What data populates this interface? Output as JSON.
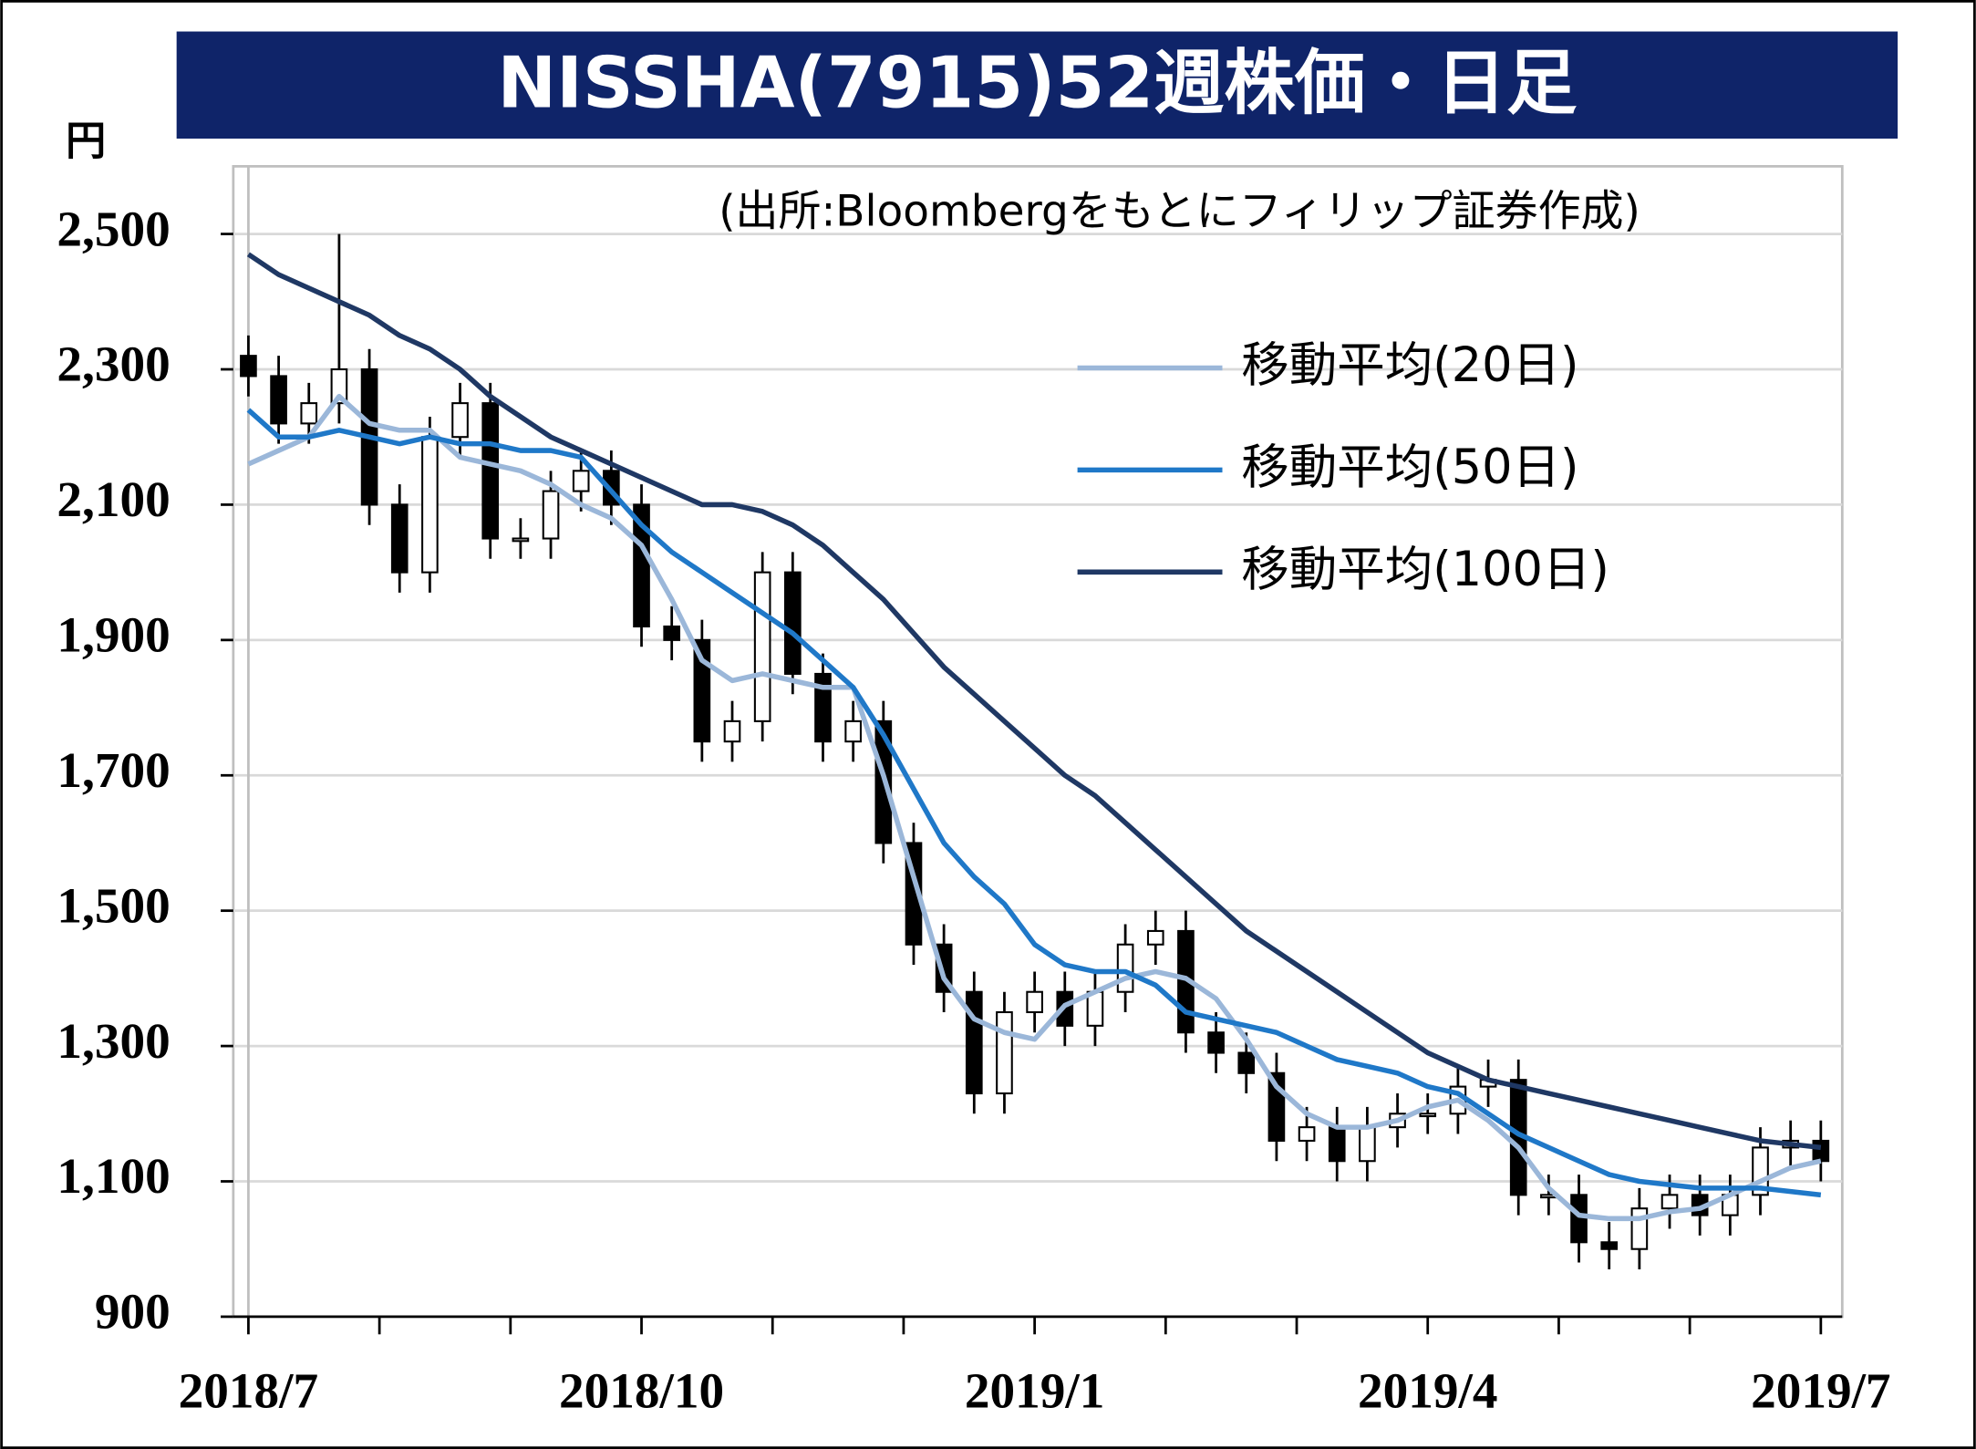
{
  "chart_data": {
    "type": "candlestick",
    "title": "NISSHA(7915)52週株価・日足",
    "subtitle": "(出所:Bloombergをもとにフィリップ証券作成)",
    "y_unit": "円",
    "categories": [
      "2018/7",
      null,
      null,
      null,
      null,
      null,
      null,
      null,
      null,
      null,
      null,
      null,
      null,
      "2018/10",
      null,
      null,
      null,
      null,
      null,
      null,
      null,
      null,
      null,
      null,
      null,
      null,
      "2019/1",
      null,
      null,
      null,
      null,
      null,
      null,
      null,
      null,
      null,
      null,
      null,
      null,
      "2019/4",
      null,
      null,
      null,
      null,
      null,
      null,
      null,
      null,
      null,
      null,
      null,
      null,
      "2019/7"
    ],
    "candles": {
      "open": [
        2320,
        2290,
        2220,
        2250,
        2300,
        2100,
        2000,
        2200,
        2250,
        2050,
        2050,
        2120,
        2150,
        2100,
        1920,
        1900,
        1750,
        1780,
        2000,
        1850,
        1750,
        1780,
        1600,
        1450,
        1380,
        1230,
        1350,
        1380,
        1330,
        1380,
        1450,
        1470,
        1320,
        1290,
        1260,
        1160,
        1180,
        1130,
        1180,
        1200,
        1200,
        1240,
        1250,
        1080,
        1080,
        1010,
        1000,
        1060,
        1080,
        1050,
        1080,
        1150,
        1160
      ],
      "high": [
        2350,
        2320,
        2280,
        2500,
        2330,
        2130,
        2230,
        2280,
        2280,
        2080,
        2150,
        2180,
        2180,
        2130,
        1950,
        1930,
        1810,
        2030,
        2030,
        1880,
        1810,
        1810,
        1630,
        1480,
        1410,
        1380,
        1410,
        1410,
        1410,
        1480,
        1500,
        1500,
        1350,
        1320,
        1290,
        1210,
        1210,
        1210,
        1230,
        1230,
        1270,
        1280,
        1280,
        1110,
        1110,
        1040,
        1090,
        1110,
        1110,
        1110,
        1180,
        1190,
        1190
      ],
      "low": [
        2260,
        2190,
        2190,
        2220,
        2070,
        1970,
        1970,
        2170,
        2020,
        2020,
        2020,
        2090,
        2070,
        1890,
        1870,
        1720,
        1720,
        1750,
        1820,
        1720,
        1720,
        1570,
        1420,
        1350,
        1200,
        1200,
        1320,
        1300,
        1300,
        1350,
        1420,
        1290,
        1260,
        1230,
        1130,
        1130,
        1100,
        1100,
        1150,
        1170,
        1170,
        1210,
        1050,
        1050,
        980,
        970,
        970,
        1030,
        1020,
        1020,
        1050,
        1120,
        1100
      ],
      "close": [
        2290,
        2220,
        2250,
        2300,
        2100,
        2000,
        2200,
        2250,
        2050,
        2050,
        2120,
        2150,
        2100,
        1920,
        1900,
        1750,
        1780,
        2000,
        1850,
        1750,
        1780,
        1600,
        1450,
        1380,
        1230,
        1350,
        1380,
        1330,
        1380,
        1450,
        1470,
        1320,
        1290,
        1260,
        1160,
        1180,
        1130,
        1180,
        1200,
        1200,
        1240,
        1250,
        1080,
        1080,
        1010,
        1000,
        1060,
        1080,
        1050,
        1080,
        1150,
        1160,
        1130
      ],
      "up_color": "#ffffff",
      "down_color": "#000000"
    },
    "series": [
      {
        "name": "移動平均(20日)",
        "color": "#9bb7d9",
        "values": [
          2160,
          2180,
          2200,
          2260,
          2220,
          2210,
          2210,
          2170,
          2160,
          2150,
          2130,
          2100,
          2080,
          2040,
          1960,
          1870,
          1840,
          1850,
          1840,
          1830,
          1830,
          1700,
          1550,
          1400,
          1340,
          1320,
          1310,
          1360,
          1380,
          1400,
          1410,
          1400,
          1370,
          1310,
          1240,
          1200,
          1180,
          1180,
          1190,
          1210,
          1220,
          1190,
          1150,
          1090,
          1050,
          1045,
          1045,
          1055,
          1060,
          1080,
          1100,
          1120,
          1130
        ]
      },
      {
        "name": "移動平均(50日)",
        "color": "#1f78c8",
        "values": [
          2240,
          2200,
          2200,
          2210,
          2200,
          2190,
          2200,
          2190,
          2190,
          2180,
          2180,
          2170,
          2120,
          2070,
          2030,
          2000,
          1970,
          1940,
          1910,
          1870,
          1830,
          1760,
          1680,
          1600,
          1550,
          1510,
          1450,
          1420,
          1410,
          1410,
          1390,
          1350,
          1340,
          1330,
          1320,
          1300,
          1280,
          1270,
          1260,
          1240,
          1230,
          1200,
          1170,
          1150,
          1130,
          1110,
          1100,
          1095,
          1090,
          1090,
          1090,
          1085,
          1080
        ]
      },
      {
        "name": "移動平均(100日)",
        "color": "#1f3864",
        "values": [
          2470,
          2440,
          2420,
          2400,
          2380,
          2350,
          2330,
          2300,
          2260,
          2230,
          2200,
          2180,
          2160,
          2140,
          2120,
          2100,
          2100,
          2090,
          2070,
          2040,
          2000,
          1960,
          1910,
          1860,
          1820,
          1780,
          1740,
          1700,
          1670,
          1630,
          1590,
          1550,
          1510,
          1470,
          1440,
          1410,
          1380,
          1350,
          1320,
          1290,
          1270,
          1250,
          1240,
          1230,
          1220,
          1210,
          1200,
          1190,
          1180,
          1170,
          1160,
          1155,
          1150
        ]
      }
    ],
    "ylim": [
      900,
      2600
    ],
    "yticks": [
      900,
      {
        "value": 1100,
        "label": "1,100"
      },
      {
        "value": 1300,
        "label": "1,300"
      },
      {
        "value": 1500,
        "label": "1,500"
      },
      {
        "value": 1700,
        "label": "1,700"
      },
      {
        "value": 1900,
        "label": "1,900"
      },
      {
        "value": 2100,
        "label": "2,100"
      },
      {
        "value": 2300,
        "label": "2,300"
      },
      {
        "value": 2500,
        "label": "2,500"
      }
    ],
    "grid": true,
    "legend": "upper right"
  }
}
